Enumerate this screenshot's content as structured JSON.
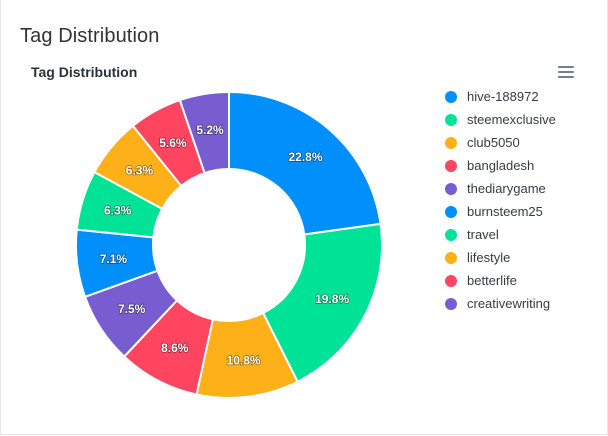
{
  "card": {
    "title": "Tag Distribution"
  },
  "chart_data": {
    "type": "pie",
    "variant": "donut",
    "title": "Tag Distribution",
    "legend_position": "right",
    "slices": [
      {
        "label": "hive-188972",
        "percent": 22.8,
        "percent_label": "22.8%",
        "color": "#008ffb"
      },
      {
        "label": "steemexclusive",
        "percent": 19.8,
        "percent_label": "19.8%",
        "color": "#00e396"
      },
      {
        "label": "club5050",
        "percent": 10.8,
        "percent_label": "10.8%",
        "color": "#feb019"
      },
      {
        "label": "bangladesh",
        "percent": 8.6,
        "percent_label": "8.6%",
        "color": "#ff4560"
      },
      {
        "label": "thediarygame",
        "percent": 7.5,
        "percent_label": "7.5%",
        "color": "#775dd0"
      },
      {
        "label": "burnsteem25",
        "percent": 7.1,
        "percent_label": "7.1%",
        "color": "#008ffb"
      },
      {
        "label": "travel",
        "percent": 6.3,
        "percent_label": "6.3%",
        "color": "#00e396"
      },
      {
        "label": "lifestyle",
        "percent": 6.3,
        "percent_label": "6.3%",
        "color": "#feb019"
      },
      {
        "label": "betterlife",
        "percent": 5.6,
        "percent_label": "5.6%",
        "color": "#ff4560"
      },
      {
        "label": "creativewriting",
        "percent": 5.2,
        "percent_label": "5.2%",
        "color": "#775dd0"
      }
    ]
  },
  "icons": {
    "menu": "hamburger-menu-icon"
  }
}
